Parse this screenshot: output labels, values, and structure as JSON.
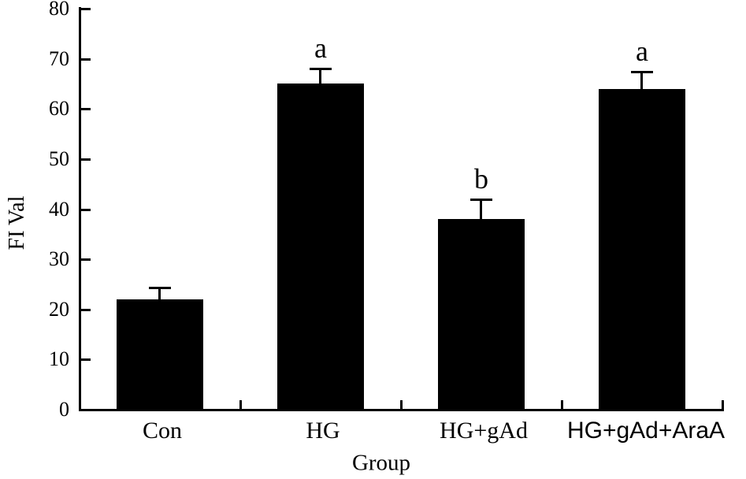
{
  "chart_data": {
    "type": "bar",
    "title": "",
    "xlabel": "Group",
    "ylabel": "FI Val",
    "categories": [
      "Con",
      "HG",
      "HG+gAd",
      "HG+gAd+AraA"
    ],
    "values": [
      22,
      65,
      38,
      64
    ],
    "errors_upper": [
      2.3,
      3.0,
      4.0,
      3.5
    ],
    "annotations": [
      "",
      "a",
      "b",
      "a"
    ],
    "ylim": [
      0,
      80
    ],
    "yticks": [
      0,
      10,
      20,
      30,
      40,
      50,
      60,
      70,
      80
    ],
    "grid": false,
    "legend_position": "none",
    "bar_color": "#000000",
    "axis_color": "#000000",
    "background": "#ffffff"
  }
}
